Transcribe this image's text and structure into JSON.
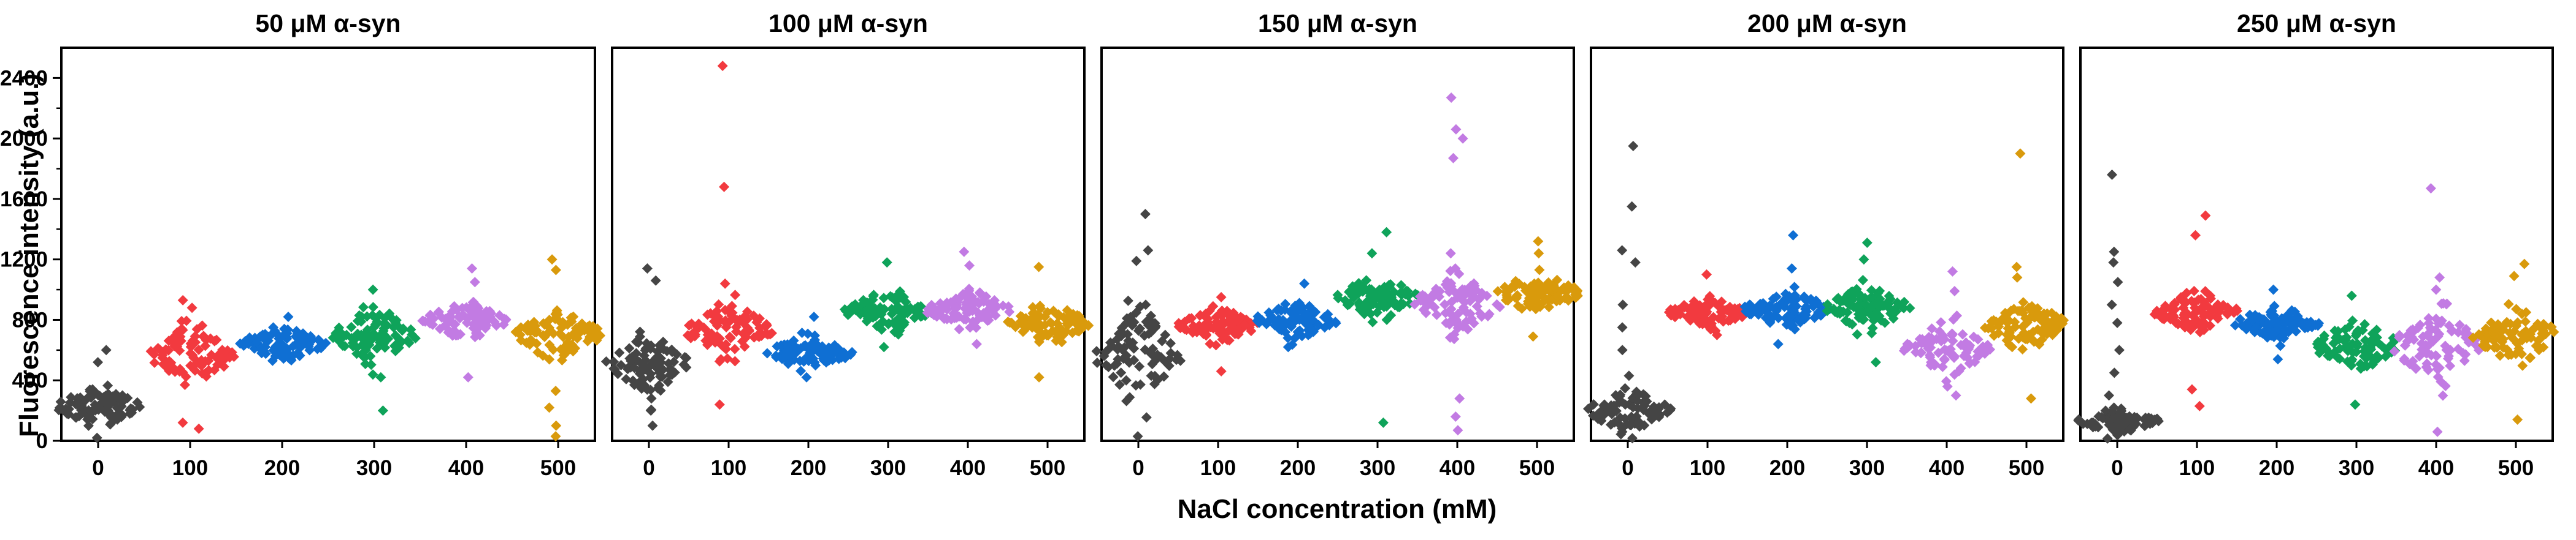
{
  "chart_data": {
    "type": "scatter",
    "ylabel": "Fluorescence intensity (a.u.)",
    "xlabel": "NaCl concentration (mM)",
    "ylim": [
      0,
      2600
    ],
    "yticks": [
      "0",
      "400",
      "800",
      "1200",
      "1600",
      "2000",
      "2400"
    ],
    "categories": [
      "0",
      "100",
      "200",
      "300",
      "400",
      "500"
    ],
    "category_colors": [
      "#454545",
      "#f23a3f",
      "#0f6fd3",
      "#0fa35a",
      "#c27be3",
      "#d99a0c"
    ],
    "panels": [
      {
        "title": "50 μM α-syn",
        "groups": [
          {
            "category": "0",
            "median": 230,
            "spread": 130,
            "n": 90,
            "outliers": [
              600,
              520,
              20
            ]
          },
          {
            "category": "100",
            "median": 560,
            "spread": 220,
            "n": 90,
            "outliers": [
              930,
              880,
              120,
              80
            ]
          },
          {
            "category": "200",
            "median": 640,
            "spread": 110,
            "n": 95,
            "outliers": [
              820,
              540
            ]
          },
          {
            "category": "300",
            "median": 700,
            "spread": 180,
            "n": 90,
            "outliers": [
              1000,
              420,
              200
            ]
          },
          {
            "category": "400",
            "median": 800,
            "spread": 120,
            "n": 90,
            "outliers": [
              1140,
              1050,
              420
            ]
          },
          {
            "category": "500",
            "median": 700,
            "spread": 180,
            "n": 85,
            "outliers": [
              1200,
              1130,
              330,
              220,
              100,
              30
            ]
          }
        ]
      },
      {
        "title": "100 μM α-syn",
        "groups": [
          {
            "category": "0",
            "median": 510,
            "spread": 180,
            "n": 90,
            "outliers": [
              1140,
              1060,
              200,
              100
            ]
          },
          {
            "category": "100",
            "median": 730,
            "spread": 190,
            "n": 90,
            "outliers": [
              2480,
              1680,
              1040,
              240
            ]
          },
          {
            "category": "200",
            "median": 580,
            "spread": 110,
            "n": 85,
            "outliers": [
              820,
              420
            ]
          },
          {
            "category": "300",
            "median": 860,
            "spread": 130,
            "n": 95,
            "outliers": [
              1180,
              620
            ]
          },
          {
            "category": "400",
            "median": 870,
            "spread": 120,
            "n": 90,
            "outliers": [
              1250,
              1160,
              640
            ]
          },
          {
            "category": "500",
            "median": 770,
            "spread": 140,
            "n": 90,
            "outliers": [
              1150,
              420
            ]
          }
        ]
      },
      {
        "title": "150 μM α-syn",
        "groups": [
          {
            "category": "0",
            "median": 560,
            "spread": 300,
            "n": 85,
            "outliers": [
              1500,
              1260,
              1190,
              30
            ]
          },
          {
            "category": "100",
            "median": 760,
            "spread": 110,
            "n": 90,
            "outliers": [
              950,
              460
            ]
          },
          {
            "category": "200",
            "median": 800,
            "spread": 110,
            "n": 90,
            "outliers": [
              1040,
              620
            ]
          },
          {
            "category": "300",
            "median": 950,
            "spread": 140,
            "n": 90,
            "outliers": [
              1380,
              1240,
              120
            ]
          },
          {
            "category": "400",
            "median": 900,
            "spread": 190,
            "n": 85,
            "outliers": [
              2270,
              2060,
              2000,
              1870,
              1240,
              1140,
              280,
              160,
              70
            ]
          },
          {
            "category": "500",
            "median": 980,
            "spread": 130,
            "n": 90,
            "outliers": [
              1320,
              1240,
              690
            ]
          }
        ]
      },
      {
        "title": "200 μM α-syn",
        "groups": [
          {
            "category": "0",
            "median": 200,
            "spread": 150,
            "n": 80,
            "outliers": [
              1950,
              1550,
              1260,
              1180,
              900,
              750,
              600,
              430
            ]
          },
          {
            "category": "100",
            "median": 850,
            "spread": 90,
            "n": 90,
            "outliers": [
              1100,
              700
            ]
          },
          {
            "category": "200",
            "median": 870,
            "spread": 120,
            "n": 90,
            "outliers": [
              1360,
              1140,
              640
            ]
          },
          {
            "category": "300",
            "median": 880,
            "spread": 140,
            "n": 90,
            "outliers": [
              1310,
              1200,
              520
            ]
          },
          {
            "category": "400",
            "median": 600,
            "spread": 180,
            "n": 90,
            "outliers": [
              1120,
              990,
              300
            ]
          },
          {
            "category": "500",
            "median": 760,
            "spread": 170,
            "n": 90,
            "outliers": [
              1900,
              1150,
              1080,
              280
            ]
          }
        ]
      },
      {
        "title": "250 μM α-syn",
        "groups": [
          {
            "category": "0",
            "median": 130,
            "spread": 80,
            "n": 80,
            "outliers": [
              1760,
              1250,
              1180,
              1050,
              900,
              780,
              600,
              450,
              300
            ]
          },
          {
            "category": "100",
            "median": 850,
            "spread": 130,
            "n": 90,
            "outliers": [
              1490,
              1360,
              340,
              230
            ]
          },
          {
            "category": "200",
            "median": 780,
            "spread": 110,
            "n": 90,
            "outliers": [
              1000,
              540
            ]
          },
          {
            "category": "300",
            "median": 630,
            "spread": 170,
            "n": 90,
            "outliers": [
              960,
              240
            ]
          },
          {
            "category": "400",
            "median": 630,
            "spread": 250,
            "n": 85,
            "outliers": [
              1670,
              1080,
              1000,
              60
            ]
          },
          {
            "category": "500",
            "median": 700,
            "spread": 190,
            "n": 90,
            "outliers": [
              1170,
              1090,
              140
            ]
          }
        ]
      }
    ]
  }
}
